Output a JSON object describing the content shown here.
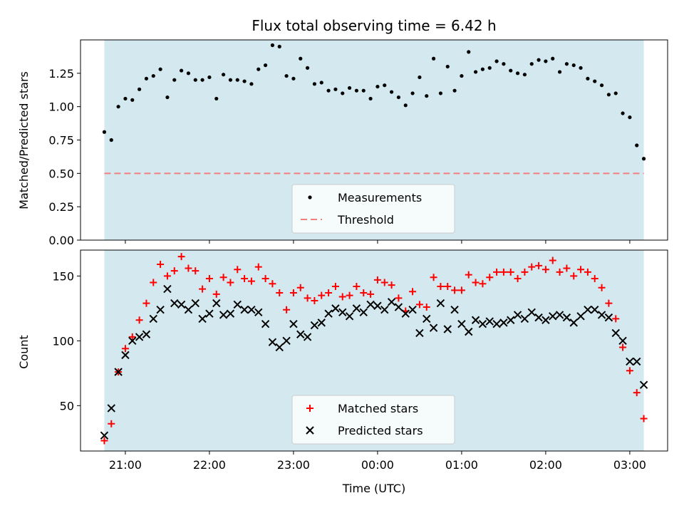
{
  "chart_data": [
    {
      "type": "scatter",
      "title": "Flux total observing time = 6.42 h",
      "xlabel": "",
      "ylabel": "Matched/Predicted stars",
      "ylim": [
        0.0,
        1.5
      ],
      "yticks": [
        "0.00",
        "0.25",
        "0.50",
        "0.75",
        "1.00",
        "1.25"
      ],
      "observing_window": [
        "20:45",
        "03:10"
      ],
      "x_axis_shared": true,
      "legend_position": "bottom-center",
      "series": [
        {
          "name": "Measurements",
          "marker": "dot",
          "color": "#000000",
          "points": [
            [
              "20:45",
              0.81
            ],
            [
              "20:50",
              0.75
            ],
            [
              "20:55",
              1.0
            ],
            [
              "21:00",
              1.06
            ],
            [
              "21:05",
              1.05
            ],
            [
              "21:10",
              1.13
            ],
            [
              "21:15",
              1.21
            ],
            [
              "21:20",
              1.23
            ],
            [
              "21:25",
              1.28
            ],
            [
              "21:30",
              1.07
            ],
            [
              "21:35",
              1.2
            ],
            [
              "21:40",
              1.27
            ],
            [
              "21:45",
              1.25
            ],
            [
              "21:50",
              1.2
            ],
            [
              "21:55",
              1.2
            ],
            [
              "22:00",
              1.22
            ],
            [
              "22:05",
              1.06
            ],
            [
              "22:10",
              1.24
            ],
            [
              "22:15",
              1.2
            ],
            [
              "22:20",
              1.2
            ],
            [
              "22:25",
              1.19
            ],
            [
              "22:30",
              1.17
            ],
            [
              "22:35",
              1.28
            ],
            [
              "22:40",
              1.31
            ],
            [
              "22:45",
              1.46
            ],
            [
              "22:50",
              1.45
            ],
            [
              "22:55",
              1.23
            ],
            [
              "23:00",
              1.21
            ],
            [
              "23:05",
              1.36
            ],
            [
              "23:10",
              1.29
            ],
            [
              "23:15",
              1.17
            ],
            [
              "23:20",
              1.18
            ],
            [
              "23:25",
              1.12
            ],
            [
              "23:30",
              1.13
            ],
            [
              "23:35",
              1.1
            ],
            [
              "23:40",
              1.14
            ],
            [
              "23:45",
              1.12
            ],
            [
              "23:50",
              1.12
            ],
            [
              "23:55",
              1.06
            ],
            [
              "00:00",
              1.15
            ],
            [
              "00:05",
              1.16
            ],
            [
              "00:10",
              1.11
            ],
            [
              "00:15",
              1.07
            ],
            [
              "00:20",
              1.01
            ],
            [
              "00:25",
              1.1
            ],
            [
              "00:30",
              1.22
            ],
            [
              "00:35",
              1.08
            ],
            [
              "00:40",
              1.36
            ],
            [
              "00:45",
              1.1
            ],
            [
              "00:50",
              1.3
            ],
            [
              "00:55",
              1.12
            ],
            [
              "01:00",
              1.23
            ],
            [
              "01:05",
              1.41
            ],
            [
              "01:10",
              1.26
            ],
            [
              "01:15",
              1.28
            ],
            [
              "01:20",
              1.29
            ],
            [
              "01:25",
              1.34
            ],
            [
              "01:30",
              1.32
            ],
            [
              "01:35",
              1.27
            ],
            [
              "01:40",
              1.25
            ],
            [
              "01:45",
              1.24
            ],
            [
              "01:50",
              1.32
            ],
            [
              "01:55",
              1.35
            ],
            [
              "02:00",
              1.34
            ],
            [
              "02:05",
              1.36
            ],
            [
              "02:10",
              1.26
            ],
            [
              "02:15",
              1.32
            ],
            [
              "02:20",
              1.31
            ],
            [
              "02:25",
              1.29
            ],
            [
              "02:30",
              1.21
            ],
            [
              "02:35",
              1.19
            ],
            [
              "02:40",
              1.16
            ],
            [
              "02:45",
              1.09
            ],
            [
              "02:50",
              1.1
            ],
            [
              "02:55",
              0.95
            ],
            [
              "03:00",
              0.92
            ],
            [
              "03:05",
              0.71
            ],
            [
              "03:10",
              0.61
            ]
          ]
        },
        {
          "name": "Threshold",
          "marker": "dashed-line",
          "color": "#f08080",
          "value": 0.5
        }
      ]
    },
    {
      "type": "scatter",
      "title": "",
      "xlabel": "Time (UTC)",
      "ylabel": "Count",
      "ylim": [
        15,
        170
      ],
      "yticks": [
        "50",
        "100",
        "150"
      ],
      "xticks": [
        "21:00",
        "22:00",
        "23:00",
        "00:00",
        "01:00",
        "02:00",
        "03:00"
      ],
      "observing_window": [
        "20:45",
        "03:10"
      ],
      "legend_position": "bottom-center",
      "series": [
        {
          "name": "Matched stars",
          "marker": "plus",
          "color": "#ff0000",
          "points": [
            [
              "20:45",
              23
            ],
            [
              "20:50",
              36
            ],
            [
              "20:55",
              76
            ],
            [
              "21:00",
              94
            ],
            [
              "21:05",
              103
            ],
            [
              "21:10",
              116
            ],
            [
              "21:15",
              129
            ],
            [
              "21:20",
              145
            ],
            [
              "21:25",
              159
            ],
            [
              "21:30",
              150
            ],
            [
              "21:35",
              154
            ],
            [
              "21:40",
              165
            ],
            [
              "21:45",
              156
            ],
            [
              "21:50",
              154
            ],
            [
              "21:55",
              140
            ],
            [
              "22:00",
              148
            ],
            [
              "22:05",
              136
            ],
            [
              "22:10",
              149
            ],
            [
              "22:15",
              145
            ],
            [
              "22:20",
              155
            ],
            [
              "22:25",
              148
            ],
            [
              "22:30",
              146
            ],
            [
              "22:35",
              157
            ],
            [
              "22:40",
              148
            ],
            [
              "22:45",
              144
            ],
            [
              "22:50",
              137
            ],
            [
              "22:55",
              124
            ],
            [
              "23:00",
              137
            ],
            [
              "23:05",
              141
            ],
            [
              "23:10",
              133
            ],
            [
              "23:15",
              131
            ],
            [
              "23:20",
              135
            ],
            [
              "23:25",
              137
            ],
            [
              "23:30",
              142
            ],
            [
              "23:35",
              134
            ],
            [
              "23:40",
              135
            ],
            [
              "23:45",
              142
            ],
            [
              "23:50",
              137
            ],
            [
              "23:55",
              136
            ],
            [
              "00:00",
              147
            ],
            [
              "00:05",
              145
            ],
            [
              "00:10",
              143
            ],
            [
              "00:15",
              133
            ],
            [
              "00:20",
              123
            ],
            [
              "00:25",
              138
            ],
            [
              "00:30",
              128
            ],
            [
              "00:35",
              126
            ],
            [
              "00:40",
              149
            ],
            [
              "00:45",
              142
            ],
            [
              "00:50",
              142
            ],
            [
              "00:55",
              139
            ],
            [
              "01:00",
              139
            ],
            [
              "01:05",
              151
            ],
            [
              "01:10",
              145
            ],
            [
              "01:15",
              144
            ],
            [
              "01:20",
              149
            ],
            [
              "01:25",
              153
            ],
            [
              "01:30",
              153
            ],
            [
              "01:35",
              153
            ],
            [
              "01:40",
              148
            ],
            [
              "01:45",
              153
            ],
            [
              "01:50",
              157
            ],
            [
              "01:55",
              158
            ],
            [
              "02:00",
              155
            ],
            [
              "02:05",
              162
            ],
            [
              "02:10",
              153
            ],
            [
              "02:15",
              156
            ],
            [
              "02:20",
              150
            ],
            [
              "02:25",
              155
            ],
            [
              "02:30",
              153
            ],
            [
              "02:35",
              148
            ],
            [
              "02:40",
              141
            ],
            [
              "02:45",
              129
            ],
            [
              "02:50",
              117
            ],
            [
              "02:55",
              95
            ],
            [
              "03:00",
              77
            ],
            [
              "03:05",
              60
            ],
            [
              "03:10",
              40
            ]
          ]
        },
        {
          "name": "Predicted stars",
          "marker": "x",
          "color": "#000000",
          "points": [
            [
              "20:45",
              27
            ],
            [
              "20:50",
              48
            ],
            [
              "20:55",
              76
            ],
            [
              "21:00",
              89
            ],
            [
              "21:05",
              100
            ],
            [
              "21:10",
              103
            ],
            [
              "21:15",
              105
            ],
            [
              "21:20",
              117
            ],
            [
              "21:25",
              124
            ],
            [
              "21:30",
              140
            ],
            [
              "21:35",
              129
            ],
            [
              "21:40",
              128
            ],
            [
              "21:45",
              124
            ],
            [
              "21:50",
              129
            ],
            [
              "21:55",
              117
            ],
            [
              "22:00",
              121
            ],
            [
              "22:05",
              129
            ],
            [
              "22:10",
              120
            ],
            [
              "22:15",
              121
            ],
            [
              "22:20",
              128
            ],
            [
              "22:25",
              124
            ],
            [
              "22:30",
              124
            ],
            [
              "22:35",
              122
            ],
            [
              "22:40",
              113
            ],
            [
              "22:45",
              99
            ],
            [
              "22:50",
              95
            ],
            [
              "22:55",
              100
            ],
            [
              "23:00",
              113
            ],
            [
              "23:05",
              105
            ],
            [
              "23:10",
              103
            ],
            [
              "23:15",
              112
            ],
            [
              "23:20",
              114
            ],
            [
              "23:25",
              121
            ],
            [
              "23:30",
              125
            ],
            [
              "23:35",
              122
            ],
            [
              "23:40",
              119
            ],
            [
              "23:45",
              125
            ],
            [
              "23:50",
              122
            ],
            [
              "23:55",
              128
            ],
            [
              "00:00",
              127
            ],
            [
              "00:05",
              124
            ],
            [
              "00:10",
              130
            ],
            [
              "00:15",
              126
            ],
            [
              "00:20",
              121
            ],
            [
              "00:25",
              124
            ],
            [
              "00:30",
              106
            ],
            [
              "00:35",
              117
            ],
            [
              "00:40",
              110
            ],
            [
              "00:45",
              129
            ],
            [
              "00:50",
              109
            ],
            [
              "00:55",
              124
            ],
            [
              "01:00",
              113
            ],
            [
              "01:05",
              107
            ],
            [
              "01:10",
              116
            ],
            [
              "01:15",
              113
            ],
            [
              "01:20",
              115
            ],
            [
              "01:25",
              113
            ],
            [
              "01:30",
              114
            ],
            [
              "01:35",
              116
            ],
            [
              "01:40",
              120
            ],
            [
              "01:45",
              117
            ],
            [
              "01:50",
              122
            ],
            [
              "01:55",
              118
            ],
            [
              "02:00",
              116
            ],
            [
              "02:05",
              119
            ],
            [
              "02:10",
              120
            ],
            [
              "02:15",
              118
            ],
            [
              "02:20",
              114
            ],
            [
              "02:25",
              119
            ],
            [
              "02:30",
              124
            ],
            [
              "02:35",
              124
            ],
            [
              "02:40",
              120
            ],
            [
              "02:45",
              118
            ],
            [
              "02:50",
              106
            ],
            [
              "02:55",
              100
            ],
            [
              "03:00",
              84
            ],
            [
              "03:05",
              84
            ],
            [
              "03:10",
              66
            ]
          ]
        }
      ]
    }
  ],
  "colors": {
    "window_fill": "#d3e9ef",
    "threshold": "#f08080",
    "matched": "#ff0000",
    "predicted": "#000000",
    "measurement": "#000000"
  }
}
